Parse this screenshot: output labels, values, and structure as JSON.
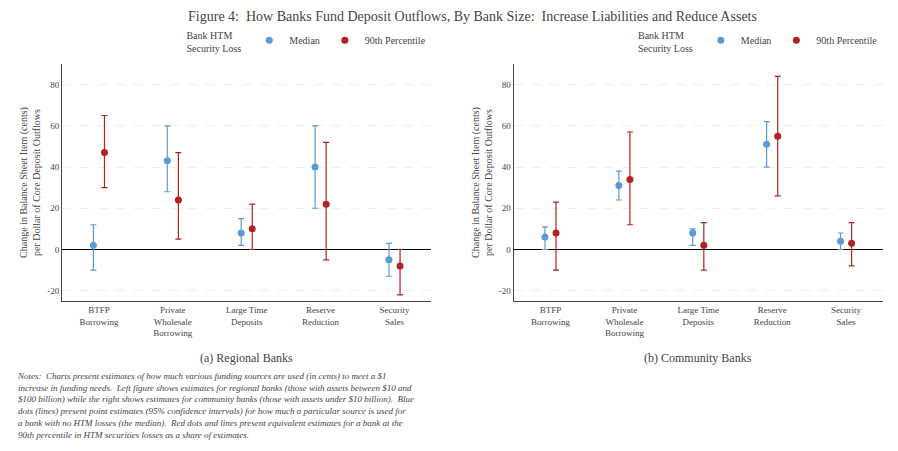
{
  "chart_data": [
    {
      "type": "scatter",
      "title": "Figure 4:  How Banks Fund Deposit Outflows, By Bank Size:  Increase Liabilities and Reduce Assets",
      "subtitle": "(a) Regional Banks",
      "ylabel": "Change in Balance Sheet Item (cents)\nper Dollar of Core Deposit Outflows",
      "categories": [
        "BTFP\nBorrowing",
        "Private\nWholesale\nBorrowing",
        "Large Time\nDeposits",
        "Reserve\nReduction",
        "Security\nSales"
      ],
      "series": [
        {
          "name": "Median",
          "color": "#5b9bd5",
          "values": [
            2,
            43,
            8,
            40,
            -5
          ],
          "ci_low": [
            -10,
            28,
            2,
            20,
            -13
          ],
          "ci_high": [
            12,
            60,
            15,
            60,
            3
          ]
        },
        {
          "name": "90th Percentile",
          "color": "#b22222",
          "values": [
            47,
            24,
            10,
            22,
            -8
          ],
          "ci_low": [
            30,
            5,
            0,
            -5,
            -22
          ],
          "ci_high": [
            65,
            47,
            22,
            52,
            0
          ]
        }
      ],
      "legend_title": "Bank HTM\nSecurity Loss",
      "legend": "upper right",
      "ylim": [
        -25,
        90
      ],
      "yticks": [
        -20,
        0,
        20,
        40,
        60,
        80
      ],
      "grid": true,
      "annotations": [
        "Notes:  Charts present estimates of how much various funding sources are used (in cents) to meet a $1",
        "increase in funding needs.  Left figure shows estimates for regional banks (those with assets between $10 and",
        "$100 billion) while the right shows estimates for community banks (those with assets under $10 billion).  Blue",
        "dots (lines) present point estimates (95% confidence intervals) for how much a particular source is used for",
        "a bank with no HTM losses (the median).  Red dots and lines present equivalent estimates for a bank at the",
        "90th percentile in HTM securities losses as a share of estimates."
      ]
    },
    {
      "type": "scatter",
      "subtitle": "(b) Community Banks",
      "ylabel": "Change in Balance Sheet Item (cents)\nper Dollar of Core Deposit Outflows",
      "categories": [
        "BTFP\nBorrowing",
        "Private\nWholesale\nBorrowing",
        "Large Time\nDeposits",
        "Reserve\nReduction",
        "Security\nSales"
      ],
      "series": [
        {
          "name": "Median",
          "color": "#5b9bd5",
          "values": [
            6,
            31,
            8,
            51,
            4
          ],
          "ci_low": [
            0,
            24,
            2,
            40,
            0
          ],
          "ci_high": [
            11,
            38,
            10,
            62,
            8
          ]
        },
        {
          "name": "90th Percentile",
          "color": "#b22222",
          "values": [
            8,
            34,
            2,
            55,
            3
          ],
          "ci_low": [
            -10,
            12,
            -10,
            26,
            -8
          ],
          "ci_high": [
            23,
            57,
            13,
            84,
            13
          ]
        }
      ],
      "legend_title": "Bank HTM\nSecurity Loss",
      "legend": "upper right",
      "ylim": [
        -25,
        90
      ],
      "yticks": [
        -20,
        0,
        20,
        40,
        60,
        80
      ],
      "grid": true
    }
  ]
}
